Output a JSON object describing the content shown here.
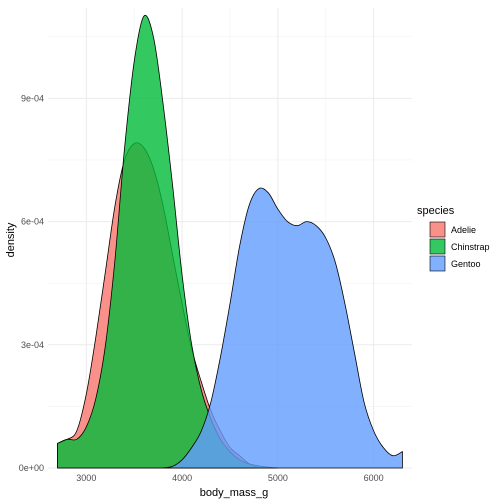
{
  "chart_data": {
    "type": "area",
    "title": "",
    "xlabel": "body_mass_g",
    "ylabel": "density",
    "xlim": [
      2600,
      6400
    ],
    "ylim": [
      0,
      0.00112
    ],
    "xticks": [
      3000,
      4000,
      5000,
      6000
    ],
    "xtick_labels": [
      "3000",
      "4000",
      "5000",
      "6000"
    ],
    "yticks": [
      0,
      0.0003,
      0.0006,
      0.0009
    ],
    "ytick_labels": [
      "0e+00",
      "3e-04",
      "6e-04",
      "9e-04"
    ],
    "grid": true,
    "legend": {
      "title": "species",
      "placement": "right"
    },
    "series": [
      {
        "name": "Adelie",
        "color": "#F8766D",
        "x": [
          2700,
          2800,
          2900,
          3000,
          3100,
          3200,
          3300,
          3400,
          3500,
          3600,
          3700,
          3800,
          3900,
          4000,
          4100,
          4200,
          4300,
          4400,
          4500,
          4600,
          4700,
          4800
        ],
        "y": [
          6e-05,
          7e-05,
          9e-05,
          0.00018,
          0.00032,
          0.00048,
          0.00064,
          0.00075,
          0.00079,
          0.00078,
          0.00073,
          0.00064,
          0.00052,
          0.0004,
          0.00029,
          0.00021,
          0.00014,
          9e-05,
          5e-05,
          3e-05,
          1e-05,
          0.0
        ]
      },
      {
        "name": "Chinstrap",
        "color": "#00BA38",
        "x": [
          2700,
          2800,
          2900,
          3000,
          3100,
          3200,
          3300,
          3400,
          3500,
          3600,
          3700,
          3800,
          3900,
          4000,
          4100,
          4200,
          4300,
          4400,
          4500,
          4600,
          4700,
          4800,
          4900,
          5000
        ],
        "y": [
          6e-05,
          7e-05,
          7e-05,
          0.0001,
          0.00017,
          0.0003,
          0.00051,
          0.00078,
          0.00099,
          0.0011,
          0.00105,
          0.00089,
          0.00069,
          0.00047,
          0.0003,
          0.00019,
          0.00012,
          7e-05,
          4e-05,
          2e-05,
          1e-05,
          5e-06,
          2e-06,
          0.0
        ]
      },
      {
        "name": "Gentoo",
        "color": "#619CFF",
        "x": [
          3800,
          3900,
          4000,
          4100,
          4200,
          4300,
          4400,
          4500,
          4600,
          4700,
          4800,
          4900,
          5000,
          5100,
          5200,
          5300,
          5400,
          5500,
          5600,
          5700,
          5800,
          5900,
          6000,
          6100,
          6200,
          6300
        ],
        "y": [
          0.0,
          4e-06,
          2e-05,
          5e-05,
          9e-05,
          0.00016,
          0.00027,
          0.0004,
          0.00054,
          0.00064,
          0.00068,
          0.00067,
          0.00063,
          0.0006,
          0.00059,
          0.0006,
          0.00059,
          0.00056,
          0.0005,
          0.0004,
          0.00028,
          0.00016,
          9e-05,
          5e-05,
          3e-05,
          4e-05
        ]
      }
    ]
  }
}
